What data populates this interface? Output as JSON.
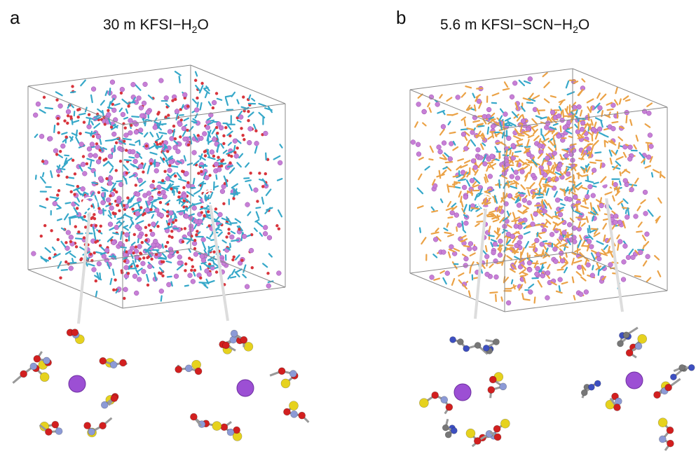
{
  "panels": [
    {
      "label": "a",
      "title_parts": [
        "30 m KFSI−H",
        "2",
        "O"
      ]
    },
    {
      "label": "b",
      "title_parts": [
        "5.6 m KFSI−SCN−H",
        "2",
        "O"
      ]
    }
  ]
}
